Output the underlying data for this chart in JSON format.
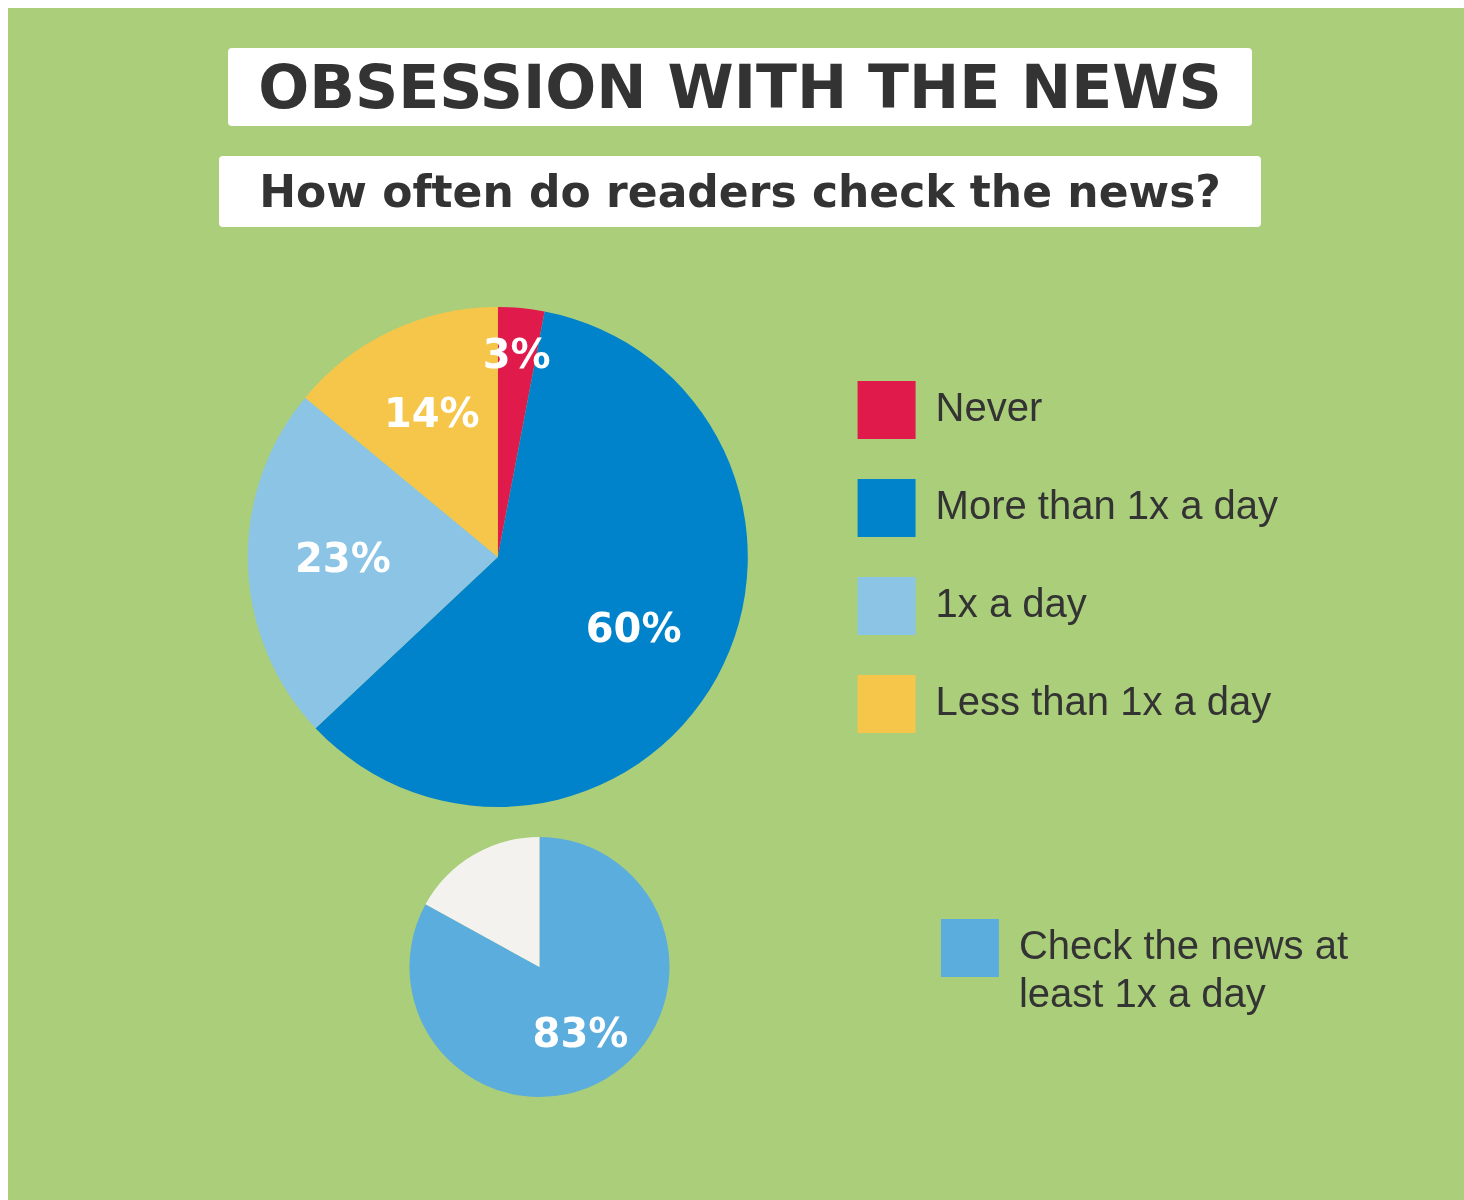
{
  "chart_data": [
    {
      "type": "pie",
      "title": "OBSESSION WITH THE NEWS",
      "subtitle": "How often do readers check the news?",
      "categories": [
        "Never",
        "More than 1x a day",
        "1x a day",
        "Less than 1x a day"
      ],
      "values": [
        3,
        60,
        23,
        14
      ],
      "colors": [
        "#e01b4c",
        "#0083ca",
        "#8bc4e5",
        "#f6c64b"
      ],
      "value_labels": [
        "3%",
        "60%",
        "23%",
        "14%"
      ],
      "legend": "right"
    },
    {
      "type": "pie",
      "categories": [
        "Check the news at least 1x a day",
        null
      ],
      "values": [
        83,
        17
      ],
      "colors": [
        "#5aaddc",
        "#f3f2ee"
      ],
      "value_labels": [
        "83%",
        null
      ],
      "legend": "right"
    }
  ]
}
